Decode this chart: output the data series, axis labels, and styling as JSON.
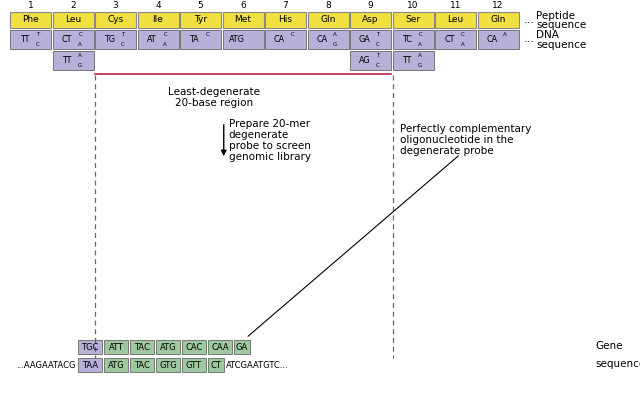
{
  "peptide_labels": [
    "Phe",
    "Leu",
    "Cys",
    "Ile",
    "Tyr",
    "Met",
    "His",
    "Gln",
    "Asp",
    "Ser",
    "Leu",
    "Gln"
  ],
  "peptide_numbers": [
    "1",
    "2",
    "3",
    "4",
    "5",
    "6",
    "7",
    "8",
    "9",
    "10",
    "11",
    "12"
  ],
  "dna_row1": [
    {
      "main": "TT",
      "sup": "T",
      "sub": "C"
    },
    {
      "main": "CT",
      "sup": "C",
      "sub": "A"
    },
    {
      "main": "TG",
      "sup": "T",
      "sub": "C"
    },
    {
      "main": "AT",
      "sup": "C",
      "sub": "A"
    },
    {
      "main": "TA",
      "sup": "C",
      "sub": ""
    },
    {
      "main": "ATG",
      "sup": "",
      "sub": ""
    },
    {
      "main": "CA",
      "sup": "C",
      "sub": ""
    },
    {
      "main": "CA",
      "sup": "A",
      "sub": "G"
    },
    {
      "main": "GA",
      "sup": "T",
      "sub": "C"
    },
    {
      "main": "TC",
      "sup": "C",
      "sub": "A"
    },
    {
      "main": "CT",
      "sup": "C",
      "sub": "A"
    },
    {
      "main": "CA",
      "sup": "A",
      "sub": ""
    }
  ],
  "dna_row2": [
    {
      "idx": 1,
      "main": "TT",
      "sup": "A",
      "sub": "G"
    },
    {
      "idx": 8,
      "main": "AG",
      "sup": "T",
      "sub": "C"
    },
    {
      "idx": 9,
      "main": "TT",
      "sup": "A",
      "sub": "G"
    }
  ],
  "gene_top": [
    "TGC",
    "ATT",
    "TAC",
    "ATG",
    "CAC",
    "CAA",
    "GA"
  ],
  "gene_top_colors": [
    "#b8b0d8",
    "#9ec89e",
    "#9ec89e",
    "#9ec89e",
    "#9ec89e",
    "#9ec89e",
    "#9ec89e"
  ],
  "gene_bot_prefix": "...AAGAATACG",
  "gene_bot_colored": [
    "TAA",
    "ATG",
    "TAC",
    "GTG",
    "GTT",
    "CT"
  ],
  "gene_bot_colors": [
    "#b8b0d8",
    "#9ec89e",
    "#9ec89e",
    "#9ec89e",
    "#9ec89e",
    "#9ec89e"
  ],
  "gene_bot_suffix": "ATCGAATGTC...",
  "color_yellow": "#f0e040",
  "color_purple": "#b8b0d8",
  "color_line_red": "#bb2244",
  "color_dash": "#666666",
  "bg": "#ffffff"
}
